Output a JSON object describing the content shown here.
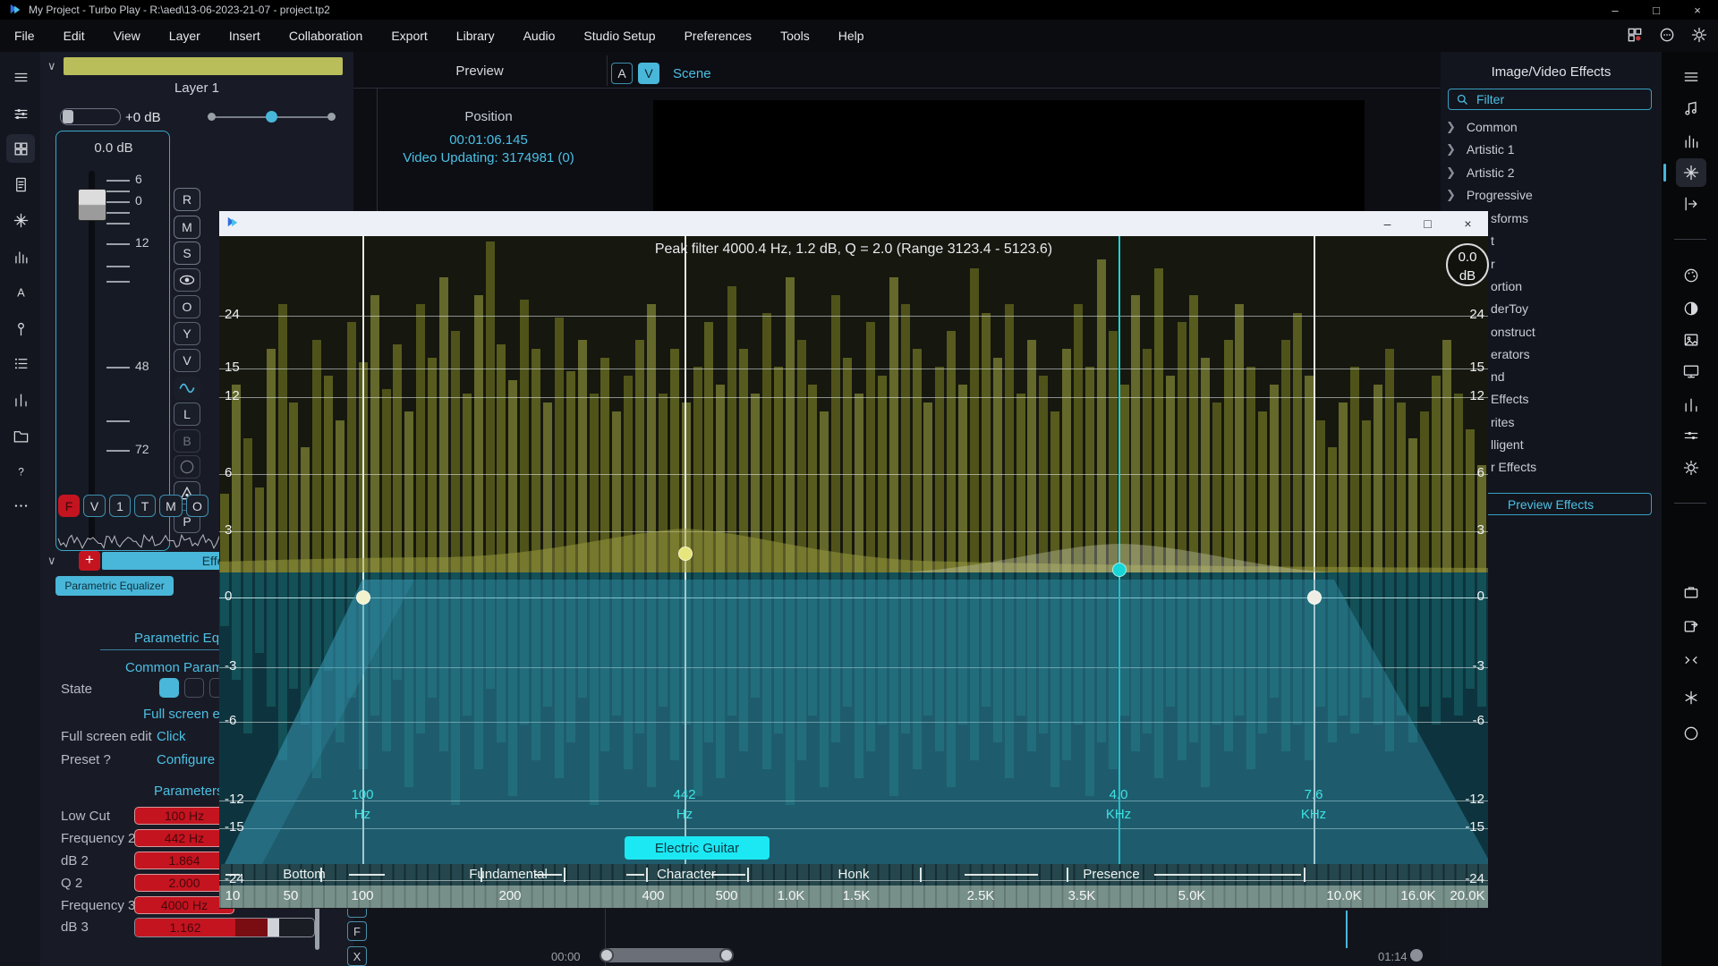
{
  "window": {
    "title": "My Project - Turbo Play - R:\\aed\\13-06-2023-21-07 - project.tp2",
    "controls": {
      "minimize": "–",
      "maximize": "□",
      "close": "×"
    }
  },
  "menu": {
    "items": [
      "File",
      "Edit",
      "View",
      "Layer",
      "Insert",
      "Collaboration",
      "Export",
      "Library",
      "Audio",
      "Studio Setup",
      "Preferences",
      "Tools",
      "Help"
    ]
  },
  "left_toolbar": {
    "icons": [
      "menu",
      "mixer",
      "grid",
      "document",
      "sparkle",
      "chart",
      "text",
      "pin",
      "list",
      "stats",
      "folder",
      "help",
      "more"
    ]
  },
  "layer_panel": {
    "collapse_glyph": "∨",
    "name": "Layer 1",
    "gain_label": "+0 dB",
    "fader_readout": "0.0 dB",
    "fader_scale": [
      "6",
      "0",
      "12",
      "48",
      "72"
    ],
    "track_buttons": [
      {
        "label": "R"
      },
      {
        "label": "M"
      },
      {
        "label": "S"
      },
      {
        "icon": "eye"
      },
      {
        "label": "O"
      },
      {
        "label": "Y"
      },
      {
        "label": "V"
      },
      {
        "icon": "wave"
      },
      {
        "label": "L"
      },
      {
        "label": "B",
        "dim": true
      },
      {
        "icon": "circle",
        "dim": true
      },
      {
        "icon": "triangle"
      },
      {
        "label": "P"
      }
    ],
    "clip_buttons": [
      "F",
      "V",
      "1",
      "T",
      "M",
      "O"
    ]
  },
  "effects_rack": {
    "collapse_glyph": "∨",
    "add_button": "+",
    "bar_label": "Effects",
    "chip": "Parametric Equalizer",
    "heading": "Parametric Equalizer",
    "subheading": "Common Parameters",
    "state_label": "State",
    "fullscreen_heading": "Full screen edit",
    "rows": [
      {
        "label": "Full screen edit",
        "value": "Click"
      },
      {
        "label": "Preset ?",
        "value": "Configure"
      }
    ],
    "params_heading": "Parameters",
    "params": [
      {
        "label": "Low Cut",
        "value": "100 Hz"
      },
      {
        "label": "Frequency 2",
        "value": "442 Hz"
      },
      {
        "label": "dB 2",
        "value": "1.864"
      },
      {
        "label": "Q 2",
        "value": "2.000"
      },
      {
        "label": "Frequency 3",
        "value": "4000 Hz"
      },
      {
        "label": "dB 3",
        "value": "1.162"
      }
    ]
  },
  "preview": {
    "title": "Preview",
    "tab_a": "A",
    "tab_v": "V",
    "scene": "Scene",
    "position_label": "Position",
    "timecode": "00:01:06.145",
    "status": "Video Updating: 3174981 (0)"
  },
  "eq_dialog": {
    "title": "Peak filter 4000.4 Hz, 1.2 dB, Q = 2.0 (Range 3123.4 - 5123.6)",
    "gain_value": "0.0",
    "gain_unit": "dB",
    "preset_badge": "Electric Guitar",
    "db_labels": [
      "24",
      "15",
      "12",
      "6",
      "3",
      "0",
      "-3",
      "-6",
      "-12",
      "-15",
      "-24"
    ],
    "markers": [
      {
        "line1": "100",
        "line2": "Hz"
      },
      {
        "line1": "442",
        "line2": "Hz"
      },
      {
        "line1": "4.0",
        "line2": "KHz"
      },
      {
        "line1": "7.6",
        "line2": "KHz"
      }
    ],
    "bands": [
      "Bottom",
      "Fundamental",
      "Character",
      "Honk",
      "Presence"
    ],
    "freq_ticks": [
      "10",
      "50",
      "100",
      "200",
      "400",
      "500",
      "1.0K",
      "1.5K",
      "2.5K",
      "3.5K",
      "5.0K",
      "10.0K",
      "16.0K",
      "20.0K"
    ],
    "chart_data": {
      "type": "area",
      "title": "Peak filter 4000.4 Hz, 1.2 dB, Q = 2.0 (Range 3123.4 - 5123.6)",
      "y_axis_db": [
        24,
        15,
        12,
        6,
        3,
        0,
        -3,
        -6,
        -12,
        -15,
        -24
      ],
      "x_ticks_hz": [
        "10",
        "50",
        "100",
        "200",
        "400",
        "500",
        "1.0K",
        "1.5K",
        "2.5K",
        "3.5K",
        "5.0K",
        "10.0K",
        "16.0K",
        "20.0K"
      ],
      "eq_points": [
        {
          "freq": "100 Hz",
          "gain_db": 0,
          "type": "low-cut"
        },
        {
          "freq": "442 Hz",
          "gain_db": 1.864,
          "q": 2.0
        },
        {
          "freq": "4.0 KHz",
          "gain_db": 1.162,
          "q": 2.0,
          "selected": true,
          "range_hz": "3123.4 - 5123.6"
        },
        {
          "freq": "7.6 KHz",
          "gain_db": 0
        }
      ],
      "upper_spectrum": [
        88,
        210,
        150,
        95,
        250,
        300,
        190,
        140,
        260,
        220,
        170,
        280,
        235,
        310,
        205,
        255,
        180,
        300,
        240,
        330,
        270,
        200,
        310,
        370,
        255,
        215,
        305,
        250,
        190,
        285,
        225,
        260,
        200,
        240,
        180,
        220,
        260,
        300,
        200,
        250,
        190,
        230,
        280,
        210,
        320,
        250,
        200,
        290,
        230,
        330,
        260,
        210,
        180,
        310,
        240,
        200,
        280,
        220,
        330,
        300,
        250,
        190,
        230,
        270,
        210,
        340,
        290,
        240,
        300,
        200,
        260,
        220,
        180,
        250,
        300,
        230,
        350,
        270,
        210,
        310,
        250,
        340,
        220,
        280,
        310,
        240,
        190,
        260,
        300,
        230,
        180,
        210,
        260,
        290,
        220,
        170,
        140,
        190,
        230,
        170,
        210,
        250,
        190,
        150,
        180,
        220,
        260,
        200,
        160,
        120
      ],
      "lower_spectrum": [
        60,
        120,
        180,
        90,
        150,
        210,
        130,
        170,
        230,
        110,
        190,
        140,
        220,
        160,
        200,
        120,
        240,
        180,
        140,
        200,
        260,
        160,
        220,
        130,
        190,
        250,
        170,
        210,
        150,
        230,
        190,
        140,
        260,
        200,
        160,
        220,
        180,
        240,
        150,
        210,
        170,
        250,
        190,
        230,
        160,
        200,
        140,
        220,
        180,
        260,
        210,
        160,
        240,
        190,
        150,
        230,
        200,
        170,
        250,
        180,
        220,
        160,
        200,
        240,
        170,
        210,
        150,
        190,
        230,
        160,
        200,
        180,
        240,
        210,
        170,
        250,
        190,
        220,
        160,
        200,
        180,
        230,
        150,
        210,
        190,
        240,
        170,
        200,
        160,
        220,
        180,
        140,
        200,
        170,
        210,
        150,
        190,
        160,
        180,
        140,
        170,
        200,
        160,
        190,
        150,
        170,
        140,
        160,
        130,
        150
      ]
    }
  },
  "right_panel": {
    "title": "Image/Video Effects",
    "filter_label": "Filter",
    "groups": [
      "Common",
      "Artistic 1",
      "Artistic 2",
      "Progressive"
    ],
    "groups_truncated": [
      "sforms",
      "t",
      "r",
      "ortion",
      "derToy",
      "onstruct",
      "erators",
      "nd",
      "Effects",
      "rites",
      "lligent",
      "r Effects"
    ],
    "preview_button": "Preview Effects"
  },
  "right_toolbar": {
    "icons": [
      "menu",
      "music",
      "chart",
      "sparkle",
      "export",
      "divider",
      "palette",
      "contrast",
      "image",
      "display",
      "stats",
      "sliders",
      "brightness",
      "divider",
      "briefcase",
      "share",
      "collapse",
      "asterisk",
      "circle"
    ],
    "selected": "sparkle"
  },
  "timeline": {
    "start": "00:00",
    "end": "01:14"
  },
  "side_buttons": [
    "F",
    "X"
  ]
}
